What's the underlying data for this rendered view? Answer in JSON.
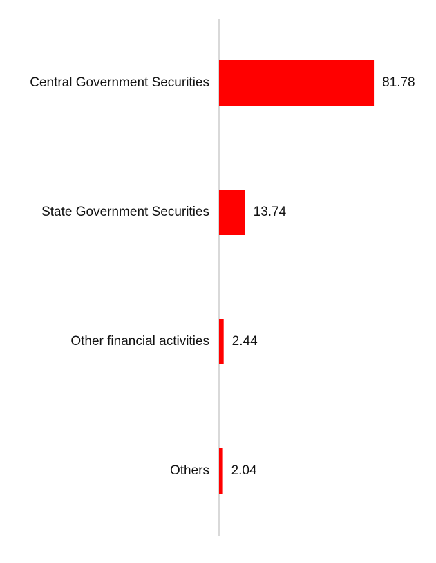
{
  "chart_data": {
    "type": "bar",
    "orientation": "horizontal",
    "categories": [
      "Central Government Securities",
      "State Government Securities",
      "Other financial activities",
      "Others"
    ],
    "values": [
      81.78,
      13.74,
      2.44,
      2.04
    ],
    "value_labels": [
      "81.78",
      "13.74",
      "2.44",
      "2.04"
    ],
    "xlim": [
      0,
      100
    ],
    "grid": false,
    "legend": "none",
    "bar_color": "#ff0000",
    "axis_color": "#d9d9d9"
  }
}
